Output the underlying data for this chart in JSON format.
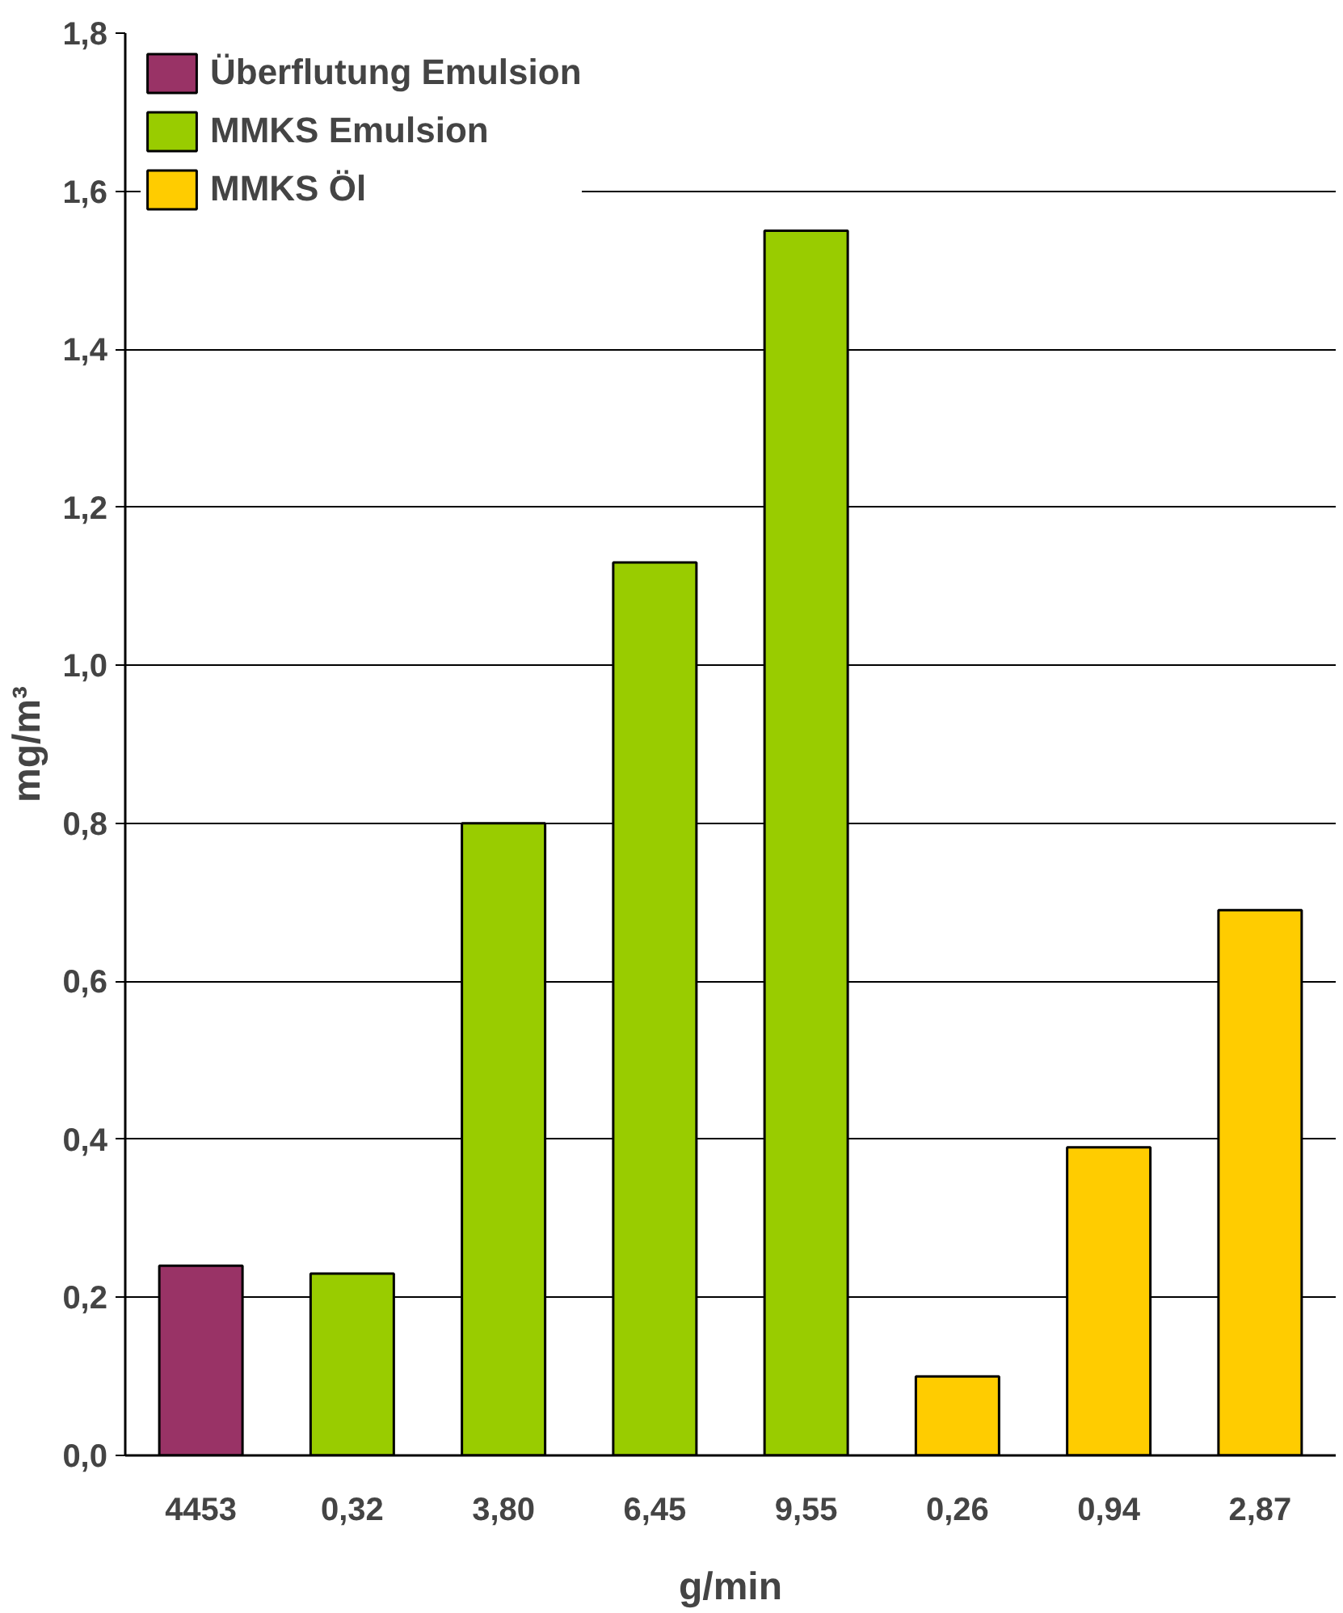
{
  "chart_data": {
    "type": "bar",
    "xlabel": "g/min",
    "ylabel": "mg/m³",
    "categories": [
      "4453",
      "0,32",
      "3,80",
      "6,45",
      "9,55",
      "0,26",
      "0,94",
      "2,87"
    ],
    "series": [
      {
        "name": "Überflutung Emulsion",
        "color": "#993366",
        "values": [
          0.24,
          null,
          null,
          null,
          null,
          null,
          null,
          null
        ]
      },
      {
        "name": "MMKS Emulsion",
        "color": "#99cc00",
        "values": [
          null,
          0.23,
          0.8,
          1.13,
          1.55,
          null,
          null,
          null
        ]
      },
      {
        "name": "MMKS Öl",
        "color": "#ffcc00",
        "values": [
          null,
          null,
          null,
          null,
          null,
          0.1,
          0.39,
          0.69
        ]
      }
    ],
    "ylim": [
      0,
      1.8
    ],
    "yticks": [
      {
        "value": 0,
        "label": "0,0"
      },
      {
        "value": 0.2,
        "label": "0,2"
      },
      {
        "value": 0.4,
        "label": "0,4"
      },
      {
        "value": 0.6,
        "label": "0,6"
      },
      {
        "value": 0.8,
        "label": "0,8"
      },
      {
        "value": 1.0,
        "label": "1,0"
      },
      {
        "value": 1.2,
        "label": "1,2"
      },
      {
        "value": 1.4,
        "label": "1,4"
      },
      {
        "value": 1.6,
        "label": "1,6"
      },
      {
        "value": 1.8,
        "label": "1,8"
      }
    ],
    "grid": "y",
    "legend": "top left"
  }
}
